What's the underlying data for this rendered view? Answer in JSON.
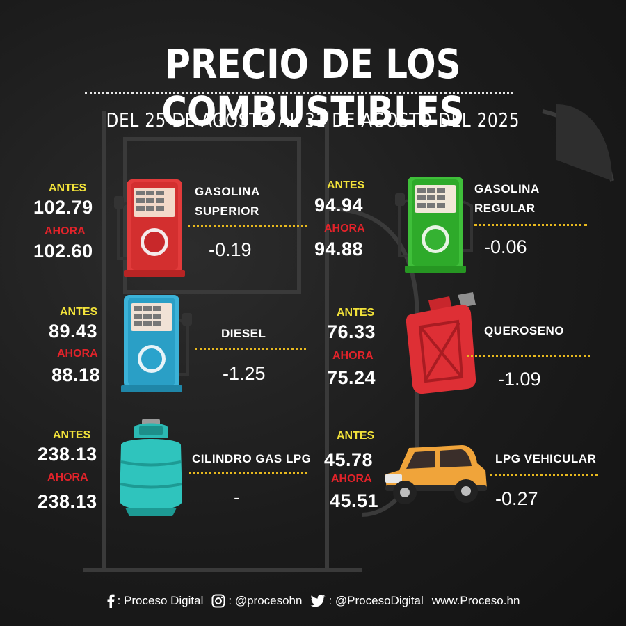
{
  "title": "PRECIO DE LOS COMBUSTIBLES",
  "subtitle": "DEL 25 DE AGOSTO AL 31 DE AGOSTO DEL 2025",
  "labels": {
    "antes": "ANTES",
    "ahora": "AHORA"
  },
  "fuels": [
    {
      "name_line1": "GASOLINA",
      "name_line2": "SUPERIOR",
      "antes": "102.79",
      "ahora": "102.60",
      "diferencia": "-0.19",
      "icon": "red-fuel-pump-icon"
    },
    {
      "name_line1": "GASOLINA",
      "name_line2": "REGULAR",
      "antes": "94.94",
      "ahora": "94.88",
      "diferencia": "-0.06",
      "icon": "green-fuel-pump-icon"
    },
    {
      "name_line1": "DIESEL",
      "name_line2": "",
      "antes": "89.43",
      "ahora": "88.18",
      "diferencia": "-1.25",
      "icon": "blue-fuel-pump-icon"
    },
    {
      "name_line1": "QUEROSENO",
      "name_line2": "",
      "antes": "76.33",
      "ahora": "75.24",
      "diferencia": "-1.09",
      "icon": "jerry-can-icon"
    },
    {
      "name_line1": "CILINDRO GAS LPG",
      "name_line2": "",
      "antes": "238.13",
      "ahora": "238.13",
      "diferencia": "-",
      "icon": "gas-cylinder-icon"
    },
    {
      "name_line1": "LPG VEHICULAR",
      "name_line2": "",
      "antes": "45.78",
      "ahora": "45.51",
      "diferencia": "-0.27",
      "icon": "car-icon"
    }
  ],
  "footer": {
    "facebook": ": Proceso Digital",
    "instagram": ": @procesohn",
    "twitter": ": @ProcesoDigital",
    "website": "www.Proceso.hn"
  },
  "colors": {
    "antes": "#f2e23a",
    "ahora": "#e2232a",
    "dotted_line": "#e8b91e",
    "background": "#1d1d1d"
  }
}
